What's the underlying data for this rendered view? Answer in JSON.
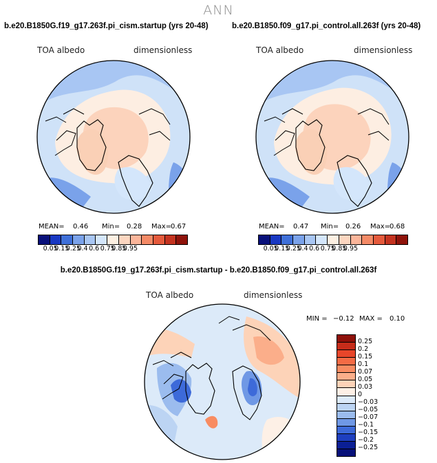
{
  "season": "ANN",
  "panels": [
    {
      "title": "b.e20.B1850G.f19_g17.263f.pi_cism.startup (yrs 20-48)",
      "variable": "TOA albedo",
      "units": "dimensionless",
      "stats": {
        "mean_label": "MEAN=",
        "mean": "0.46",
        "min_label": "Min=",
        "min": "0.28",
        "max_label": "Max=",
        "max": "0.67"
      }
    },
    {
      "title": "b.e20.B1850.f09_g17.pi_control.all.263f (yrs 20-48)",
      "variable": "TOA albedo",
      "units": "dimensionless",
      "stats": {
        "mean_label": "MEAN=",
        "mean": "0.47",
        "min_label": "Min=",
        "min": "0.26",
        "max_label": "Max=",
        "max": "0.68"
      }
    }
  ],
  "colorbar": {
    "labels": [
      "0.05",
      "0.15",
      "0.25",
      "0.4",
      "0.6",
      "0.75",
      "0.85",
      "0.95"
    ],
    "colors": [
      "#08107a",
      "#1838c2",
      "#3f70d9",
      "#7aa2ea",
      "#a8c6f3",
      "#d4e6fb",
      "#fdf0e2",
      "#fcd6c0",
      "#fab59a",
      "#f48a66",
      "#e55a3c",
      "#c43320",
      "#8f130b"
    ]
  },
  "diff_panel": {
    "title": "b.e20.B1850G.f19_g17.263f.pi_cism.startup - b.e20.B1850.f09_g17.pi_control.all.263f",
    "variable": "TOA albedo",
    "units": "dimensionless",
    "min_label": "MIN =",
    "min": "−0.12",
    "max_label": "MAX =",
    "max": "0.10",
    "colorbar": {
      "labels": [
        "0.25",
        "0.2",
        "0.15",
        "0.1",
        "0.07",
        "0.05",
        "0.03",
        "0",
        "−0.03",
        "−0.05",
        "−0.07",
        "−0.1",
        "−0.15",
        "−0.2",
        "−0.25"
      ],
      "colors": [
        "#8e1009",
        "#c62c1a",
        "#e7462a",
        "#f46b45",
        "#f88c62",
        "#fbae8a",
        "#fdd3b8",
        "#fdf0e6",
        "#dceaf9",
        "#bcd4f3",
        "#9bbcee",
        "#6f98e5",
        "#3d6ad9",
        "#1e3fbf",
        "#0b1f95",
        "#061079"
      ]
    }
  }
}
